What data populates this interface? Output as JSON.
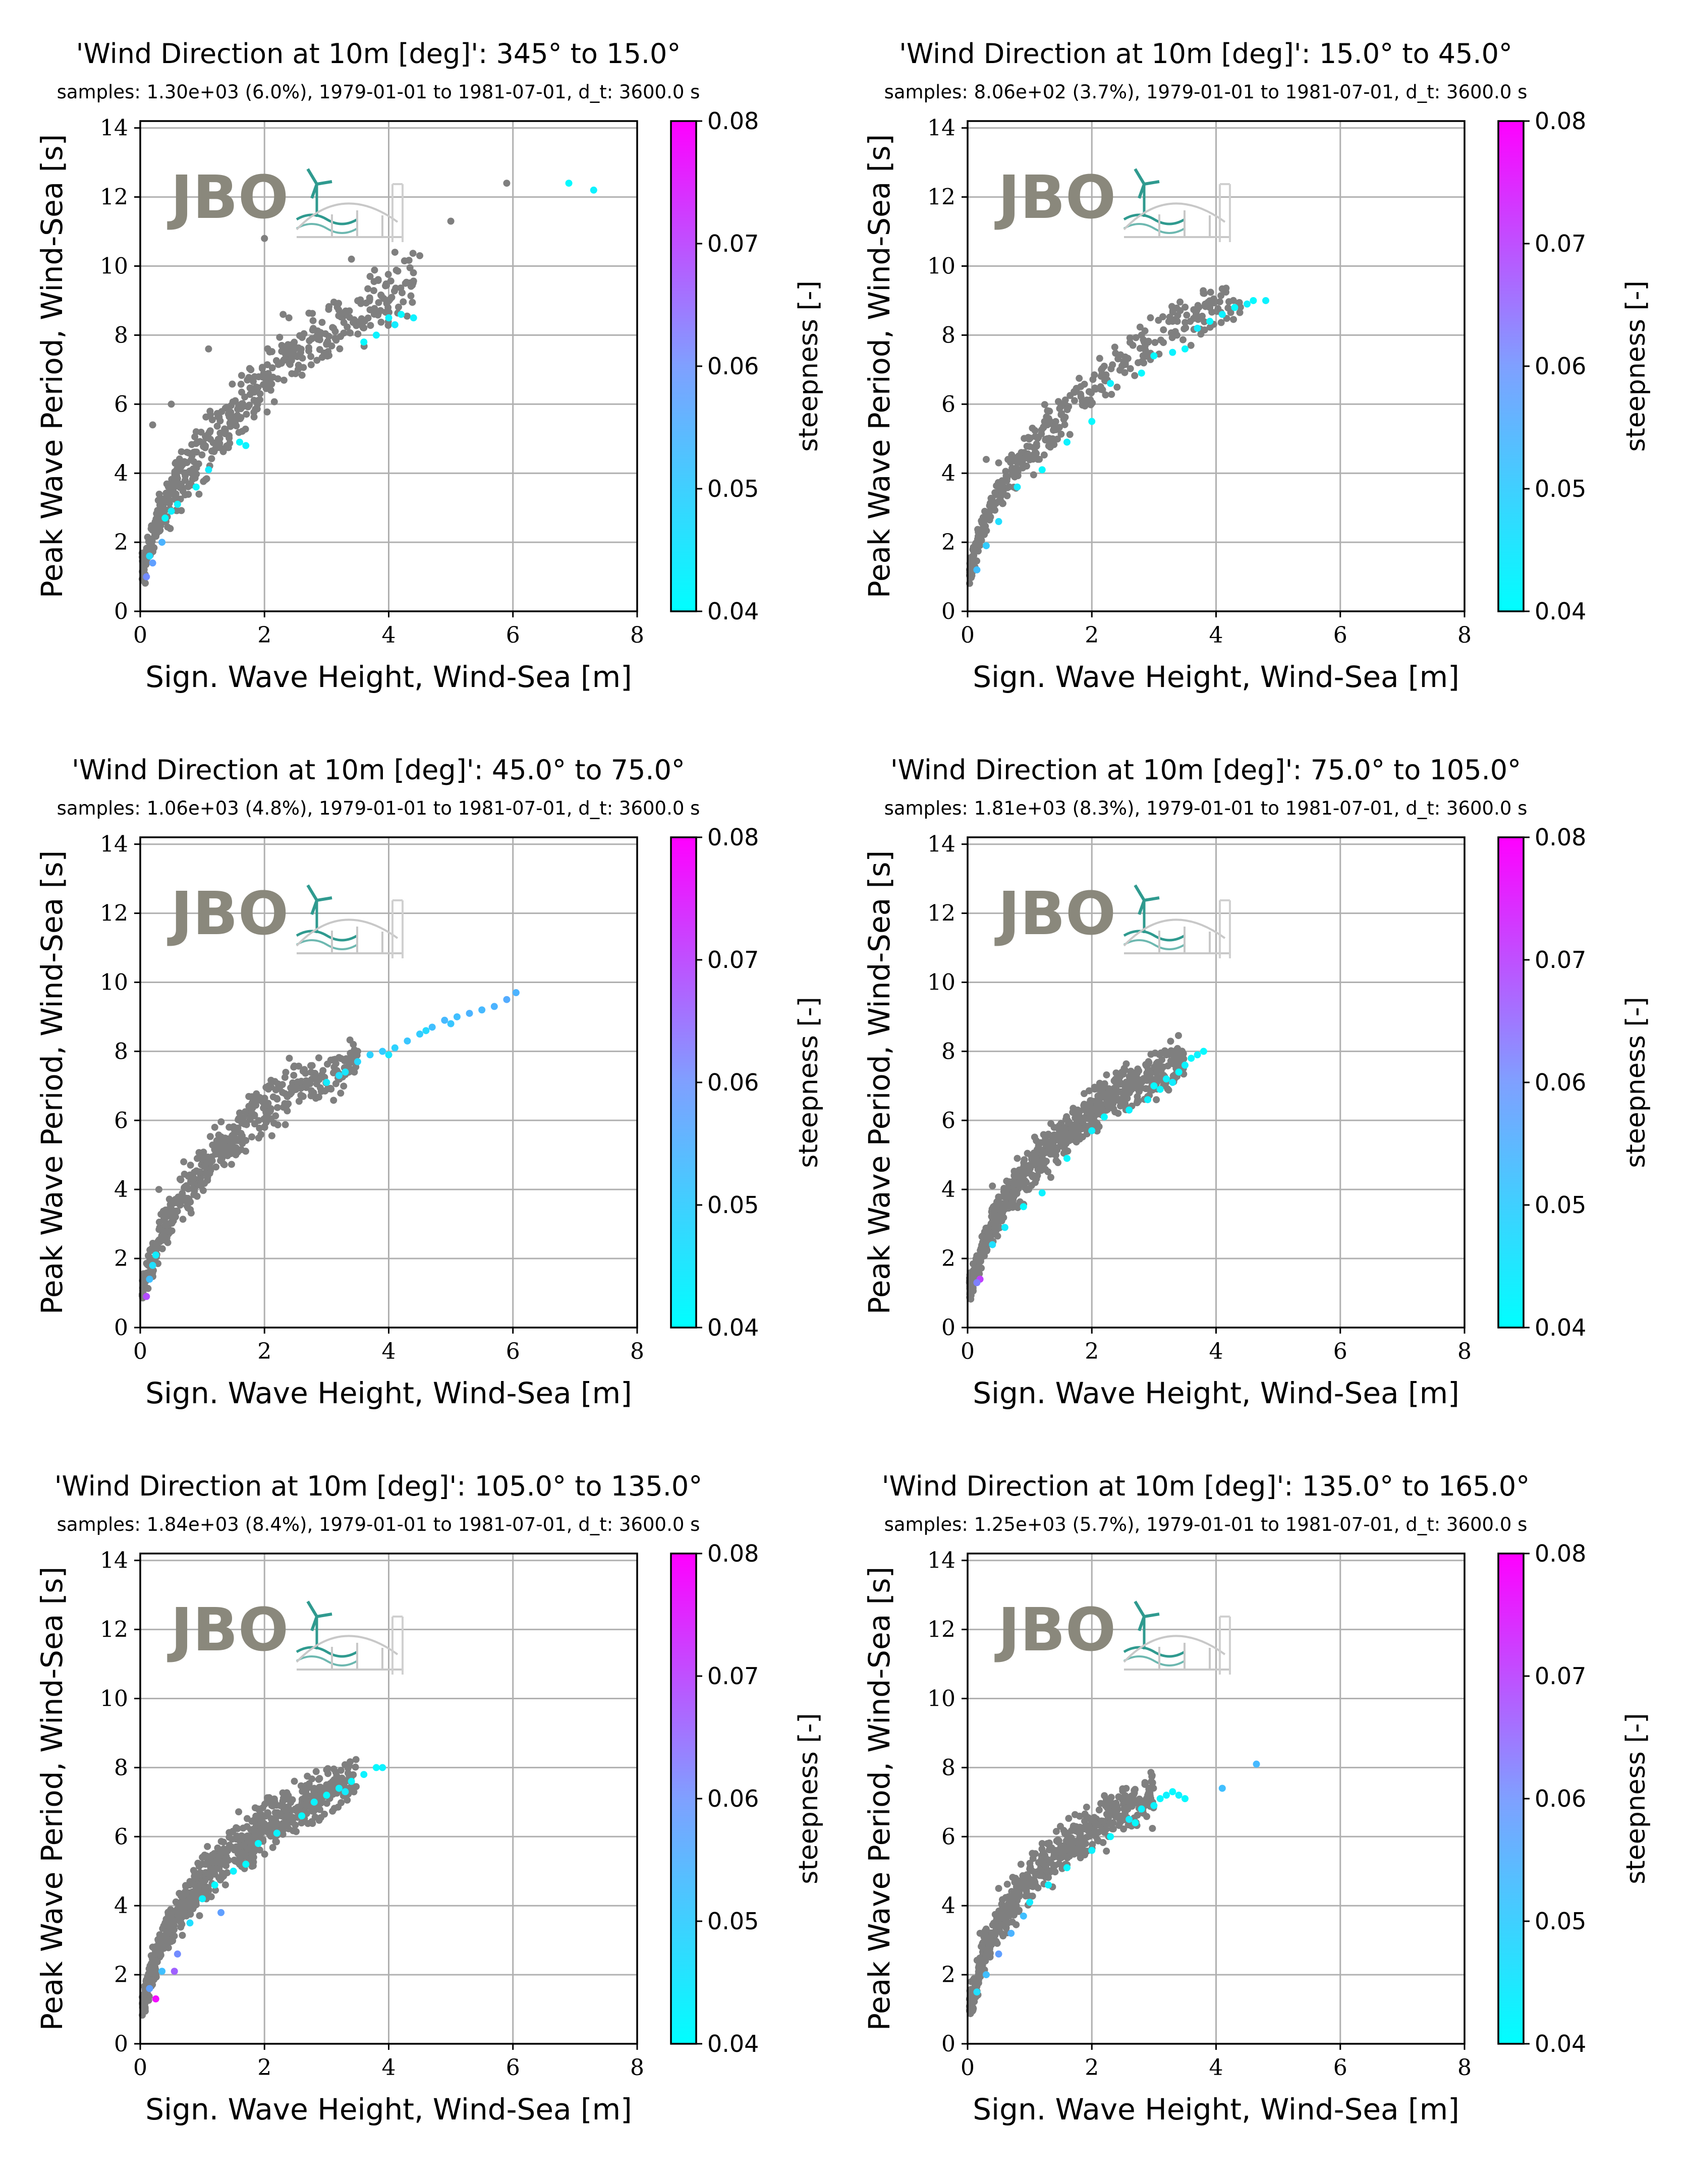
{
  "figure": {
    "colorbar": {
      "label": "steepness [-]",
      "ticks": [
        "0.04",
        "0.05",
        "0.06",
        "0.07",
        "0.08"
      ],
      "range": [
        0.04,
        0.08
      ],
      "colors": [
        "#00ffff",
        "#ff00ff"
      ]
    },
    "logo_text": "JBO",
    "point_color_default": "#7f7f7f"
  },
  "chart_data": [
    {
      "type": "scatter",
      "title": "'Wind Direction at 10m [deg]': 345° to 15.0°",
      "subtitle": "samples: 1.30e+03 (6.0%), 1979-01-01 to 1981-07-01, d_t: 3600.0 s",
      "xlabel": "Sign. Wave Height, Wind-Sea [m]",
      "ylabel": "Peak Wave Period, Wind-Sea [s]",
      "xlim": [
        0,
        8
      ],
      "ylim": [
        0,
        14.2
      ],
      "xticks": [
        "0",
        "2",
        "4",
        "6",
        "8"
      ],
      "yticks": [
        "0",
        "2",
        "4",
        "6",
        "8",
        "10",
        "12",
        "14"
      ],
      "grid": true,
      "gray_trend": [
        [
          0.05,
          1.2
        ],
        [
          0.3,
          2.8
        ],
        [
          0.6,
          3.7
        ],
        [
          1,
          4.6
        ],
        [
          1.5,
          5.7
        ],
        [
          2,
          6.7
        ],
        [
          2.5,
          7.6
        ],
        [
          3,
          8.1
        ],
        [
          3.5,
          8.6
        ],
        [
          4,
          9.1
        ],
        [
          4.4,
          9.6
        ]
      ],
      "gray_spread": 0.45,
      "gray_count": 520,
      "gray_outliers": [
        [
          0.2,
          5.4
        ],
        [
          0.5,
          6.0
        ],
        [
          1.1,
          7.6
        ],
        [
          2.0,
          10.8
        ],
        [
          2.3,
          8.6
        ],
        [
          3.4,
          10.2
        ],
        [
          4.1,
          10.4
        ],
        [
          5.0,
          11.3
        ],
        [
          5.9,
          12.4
        ],
        [
          4.5,
          10.3
        ],
        [
          3.7,
          9.7
        ],
        [
          0.9,
          5.2
        ]
      ],
      "colored_points": [
        [
          3.6,
          7.8,
          0.041
        ],
        [
          3.8,
          8.0,
          0.042
        ],
        [
          4.0,
          8.5,
          0.042
        ],
        [
          4.1,
          8.3,
          0.043
        ],
        [
          4.2,
          8.6,
          0.041
        ],
        [
          4.4,
          8.5,
          0.042
        ],
        [
          6.9,
          12.4,
          0.041
        ],
        [
          7.3,
          12.2,
          0.042
        ],
        [
          1.6,
          4.9,
          0.041
        ],
        [
          1.7,
          4.8,
          0.042
        ],
        [
          1.1,
          4.1,
          0.043
        ],
        [
          0.9,
          3.6,
          0.041
        ],
        [
          0.6,
          3.1,
          0.042
        ],
        [
          0.5,
          2.9,
          0.042
        ],
        [
          0.35,
          2.0,
          0.052
        ],
        [
          0.2,
          1.4,
          0.055
        ],
        [
          0.1,
          1.0,
          0.058
        ],
        [
          0.15,
          1.6,
          0.045
        ],
        [
          0.4,
          2.7,
          0.041
        ]
      ]
    },
    {
      "type": "scatter",
      "title": "'Wind Direction at 10m [deg]': 15.0° to 45.0°",
      "subtitle": "samples: 8.06e+02 (3.7%), 1979-01-01 to 1981-07-01, d_t: 3600.0 s",
      "xlabel": "Sign. Wave Height, Wind-Sea [m]",
      "ylabel": "Peak Wave Period, Wind-Sea [s]",
      "xlim": [
        0,
        8
      ],
      "ylim": [
        0,
        14.2
      ],
      "xticks": [
        "0",
        "2",
        "4",
        "6",
        "8"
      ],
      "yticks": [
        "0",
        "2",
        "4",
        "6",
        "8",
        "10",
        "12",
        "14"
      ],
      "grid": true,
      "gray_trend": [
        [
          0.05,
          1.2
        ],
        [
          0.3,
          2.7
        ],
        [
          0.6,
          3.7
        ],
        [
          1,
          4.6
        ],
        [
          1.5,
          5.6
        ],
        [
          2,
          6.5
        ],
        [
          2.5,
          7.3
        ],
        [
          3,
          7.9
        ],
        [
          3.5,
          8.4
        ],
        [
          4,
          8.8
        ],
        [
          4.4,
          9.0
        ]
      ],
      "gray_spread": 0.35,
      "gray_count": 360,
      "gray_outliers": [
        [
          0.3,
          4.4
        ],
        [
          0.5,
          4.3
        ],
        [
          1.5,
          6.0
        ],
        [
          2.8,
          8.0
        ],
        [
          3.3,
          8.4
        ],
        [
          3.9,
          8.8
        ],
        [
          2.2,
          7.1
        ]
      ],
      "colored_points": [
        [
          4.3,
          8.8,
          0.041
        ],
        [
          4.5,
          8.9,
          0.042
        ],
        [
          4.6,
          9.0,
          0.041
        ],
        [
          4.8,
          9.0,
          0.042
        ],
        [
          4.1,
          8.6,
          0.042
        ],
        [
          3.9,
          8.4,
          0.041
        ],
        [
          3.7,
          8.2,
          0.043
        ],
        [
          3.5,
          7.6,
          0.041
        ],
        [
          3.3,
          7.5,
          0.042
        ],
        [
          3.0,
          7.4,
          0.041
        ],
        [
          2.8,
          6.9,
          0.041
        ],
        [
          2.3,
          6.6,
          0.042
        ],
        [
          2.0,
          5.5,
          0.041
        ],
        [
          1.6,
          4.9,
          0.042
        ],
        [
          1.2,
          4.1,
          0.041
        ],
        [
          0.8,
          3.6,
          0.043
        ],
        [
          0.5,
          2.6,
          0.045
        ],
        [
          0.3,
          1.9,
          0.048
        ],
        [
          0.15,
          1.2,
          0.05
        ]
      ]
    },
    {
      "type": "scatter",
      "title": "'Wind Direction at 10m [deg]': 45.0° to 75.0°",
      "subtitle": "samples: 1.06e+03 (4.8%), 1979-01-01 to 1981-07-01, d_t: 3600.0 s",
      "xlabel": "Sign. Wave Height, Wind-Sea [m]",
      "ylabel": "Peak Wave Period, Wind-Sea [s]",
      "xlim": [
        0,
        8
      ],
      "ylim": [
        0,
        14.2
      ],
      "xticks": [
        "0",
        "2",
        "4",
        "6",
        "8"
      ],
      "yticks": [
        "0",
        "2",
        "4",
        "6",
        "8",
        "10",
        "12",
        "14"
      ],
      "grid": true,
      "gray_trend": [
        [
          0.05,
          1.2
        ],
        [
          0.3,
          2.6
        ],
        [
          0.6,
          3.5
        ],
        [
          1,
          4.6
        ],
        [
          1.5,
          5.5
        ],
        [
          2,
          6.3
        ],
        [
          2.5,
          6.9
        ],
        [
          3,
          7.3
        ],
        [
          3.5,
          7.8
        ]
      ],
      "gray_spread": 0.35,
      "gray_count": 480,
      "gray_outliers": [
        [
          0.3,
          4.0
        ],
        [
          0.7,
          4.8
        ],
        [
          1.2,
          5.8
        ],
        [
          2.4,
          7.8
        ],
        [
          3.5,
          8.0
        ],
        [
          1.8,
          6.5
        ]
      ],
      "colored_points": [
        [
          3.2,
          7.3,
          0.045
        ],
        [
          3.5,
          7.7,
          0.046
        ],
        [
          3.7,
          7.9,
          0.047
        ],
        [
          3.9,
          8.0,
          0.048
        ],
        [
          4.1,
          8.1,
          0.047
        ],
        [
          4.3,
          8.3,
          0.049
        ],
        [
          4.5,
          8.5,
          0.048
        ],
        [
          4.7,
          8.7,
          0.05
        ],
        [
          4.9,
          8.9,
          0.051
        ],
        [
          5.1,
          9.0,
          0.05
        ],
        [
          5.3,
          9.1,
          0.052
        ],
        [
          5.5,
          9.2,
          0.051
        ],
        [
          5.7,
          9.3,
          0.052
        ],
        [
          5.9,
          9.5,
          0.053
        ],
        [
          6.05,
          9.7,
          0.052
        ],
        [
          4.0,
          7.9,
          0.044
        ],
        [
          3.0,
          7.1,
          0.043
        ],
        [
          3.3,
          7.4,
          0.044
        ],
        [
          0.2,
          1.8,
          0.045
        ],
        [
          0.15,
          1.4,
          0.05
        ],
        [
          0.1,
          0.9,
          0.068
        ],
        [
          0.25,
          2.1,
          0.043
        ],
        [
          4.6,
          8.6,
          0.046
        ],
        [
          5.0,
          8.8,
          0.049
        ]
      ]
    },
    {
      "type": "scatter",
      "title": "'Wind Direction at 10m [deg]': 75.0° to 105.0°",
      "subtitle": "samples: 1.81e+03 (8.3%), 1979-01-01 to 1981-07-01, d_t: 3600.0 s",
      "xlabel": "Sign. Wave Height, Wind-Sea [m]",
      "ylabel": "Peak Wave Period, Wind-Sea [s]",
      "xlim": [
        0,
        8
      ],
      "ylim": [
        0,
        14.2
      ],
      "xticks": [
        "0",
        "2",
        "4",
        "6",
        "8"
      ],
      "yticks": [
        "0",
        "2",
        "4",
        "6",
        "8",
        "10",
        "12",
        "14"
      ],
      "grid": true,
      "gray_trend": [
        [
          0.05,
          1.2
        ],
        [
          0.3,
          2.6
        ],
        [
          0.6,
          3.6
        ],
        [
          1,
          4.6
        ],
        [
          1.5,
          5.5
        ],
        [
          2,
          6.3
        ],
        [
          2.5,
          6.9
        ],
        [
          3,
          7.3
        ],
        [
          3.5,
          7.7
        ]
      ],
      "gray_spread": 0.3,
      "gray_count": 800,
      "gray_outliers": [
        [
          0.4,
          4.1
        ],
        [
          0.8,
          4.9
        ],
        [
          1.3,
          5.6
        ],
        [
          2.2,
          7.0
        ],
        [
          3.2,
          7.9
        ]
      ],
      "colored_points": [
        [
          3.0,
          7.0,
          0.041
        ],
        [
          3.2,
          7.2,
          0.042
        ],
        [
          3.4,
          7.4,
          0.041
        ],
        [
          3.5,
          7.6,
          0.042
        ],
        [
          3.6,
          7.8,
          0.041
        ],
        [
          3.7,
          7.9,
          0.042
        ],
        [
          3.8,
          8.0,
          0.041
        ],
        [
          3.3,
          7.1,
          0.043
        ],
        [
          3.1,
          6.9,
          0.041
        ],
        [
          2.6,
          6.3,
          0.042
        ],
        [
          2.2,
          6.1,
          0.041
        ],
        [
          2.0,
          5.7,
          0.042
        ],
        [
          1.6,
          4.9,
          0.041
        ],
        [
          1.2,
          3.9,
          0.042
        ],
        [
          0.9,
          3.5,
          0.041
        ],
        [
          0.6,
          2.9,
          0.043
        ],
        [
          0.4,
          2.4,
          0.045
        ],
        [
          0.2,
          1.4,
          0.07
        ],
        [
          0.15,
          1.3,
          0.06
        ],
        [
          2.9,
          6.6,
          0.042
        ]
      ]
    },
    {
      "type": "scatter",
      "title": "'Wind Direction at 10m [deg]': 105.0° to 135.0°",
      "subtitle": "samples: 1.84e+03 (8.4%), 1979-01-01 to 1981-07-01, d_t: 3600.0 s",
      "xlabel": "Sign. Wave Height, Wind-Sea [m]",
      "ylabel": "Peak Wave Period, Wind-Sea [s]",
      "xlim": [
        0,
        8
      ],
      "ylim": [
        0,
        14.2
      ],
      "xticks": [
        "0",
        "2",
        "4",
        "6",
        "8"
      ],
      "yticks": [
        "0",
        "2",
        "4",
        "6",
        "8",
        "10",
        "12",
        "14"
      ],
      "grid": true,
      "gray_trend": [
        [
          0.05,
          1.2
        ],
        [
          0.3,
          2.8
        ],
        [
          0.6,
          3.7
        ],
        [
          1,
          4.7
        ],
        [
          1.5,
          5.6
        ],
        [
          2,
          6.3
        ],
        [
          2.5,
          6.8
        ],
        [
          3,
          7.3
        ],
        [
          3.5,
          7.7
        ]
      ],
      "gray_spread": 0.35,
      "gray_count": 800,
      "gray_outliers": [
        [
          0.2,
          2.8
        ],
        [
          0.4,
          3.5
        ],
        [
          1.0,
          5.4
        ],
        [
          1.9,
          6.8
        ],
        [
          2.8,
          7.4
        ]
      ],
      "colored_points": [
        [
          2.8,
          7.0,
          0.042
        ],
        [
          3.0,
          7.2,
          0.041
        ],
        [
          3.2,
          7.4,
          0.042
        ],
        [
          3.4,
          7.6,
          0.041
        ],
        [
          3.6,
          7.8,
          0.042
        ],
        [
          3.8,
          8.0,
          0.041
        ],
        [
          3.9,
          8.0,
          0.042
        ],
        [
          2.6,
          6.6,
          0.041
        ],
        [
          2.2,
          6.1,
          0.042
        ],
        [
          1.9,
          5.8,
          0.041
        ],
        [
          1.5,
          5.0,
          0.042
        ],
        [
          1.2,
          4.6,
          0.041
        ],
        [
          1.0,
          4.2,
          0.042
        ],
        [
          1.3,
          3.8,
          0.055
        ],
        [
          0.8,
          3.5,
          0.045
        ],
        [
          0.6,
          2.6,
          0.058
        ],
        [
          0.55,
          2.1,
          0.065
        ],
        [
          0.35,
          2.1,
          0.05
        ],
        [
          0.25,
          1.3,
          0.078
        ],
        [
          0.15,
          1.6,
          0.055
        ],
        [
          3.3,
          7.3,
          0.043
        ],
        [
          1.7,
          5.2,
          0.041
        ]
      ]
    },
    {
      "type": "scatter",
      "title": "'Wind Direction at 10m [deg]': 135.0° to 165.0°",
      "subtitle": "samples: 1.25e+03 (5.7%), 1979-01-01 to 1981-07-01, d_t: 3600.0 s",
      "xlabel": "Sign. Wave Height, Wind-Sea [m]",
      "ylabel": "Peak Wave Period, Wind-Sea [s]",
      "xlim": [
        0,
        8
      ],
      "ylim": [
        0,
        14.2
      ],
      "xticks": [
        "0",
        "2",
        "4",
        "6",
        "8"
      ],
      "yticks": [
        "0",
        "2",
        "4",
        "6",
        "8",
        "10",
        "12",
        "14"
      ],
      "grid": true,
      "gray_trend": [
        [
          0.05,
          1.2
        ],
        [
          0.3,
          2.8
        ],
        [
          0.6,
          3.8
        ],
        [
          1,
          4.8
        ],
        [
          1.5,
          5.6
        ],
        [
          2,
          6.3
        ],
        [
          2.5,
          6.8
        ],
        [
          3,
          7.1
        ]
      ],
      "gray_spread": 0.35,
      "gray_count": 560,
      "gray_outliers": [
        [
          0.2,
          3.2
        ],
        [
          0.5,
          4.5
        ],
        [
          1.2,
          5.8
        ],
        [
          2.6,
          7.1
        ],
        [
          2.9,
          7.2
        ]
      ],
      "colored_points": [
        [
          3.0,
          6.9,
          0.042
        ],
        [
          3.1,
          7.1,
          0.041
        ],
        [
          3.2,
          7.2,
          0.042
        ],
        [
          3.3,
          7.3,
          0.041
        ],
        [
          3.4,
          7.2,
          0.042
        ],
        [
          3.5,
          7.1,
          0.041
        ],
        [
          2.8,
          6.8,
          0.042
        ],
        [
          2.6,
          6.5,
          0.043
        ],
        [
          2.3,
          6.0,
          0.041
        ],
        [
          2.0,
          5.6,
          0.042
        ],
        [
          1.6,
          5.1,
          0.041
        ],
        [
          1.3,
          4.6,
          0.042
        ],
        [
          1.0,
          4.1,
          0.043
        ],
        [
          0.9,
          3.7,
          0.05
        ],
        [
          0.7,
          3.2,
          0.052
        ],
        [
          0.5,
          2.6,
          0.055
        ],
        [
          0.3,
          2.0,
          0.05
        ],
        [
          0.15,
          1.5,
          0.045
        ],
        [
          4.1,
          7.4,
          0.05
        ],
        [
          4.65,
          8.1,
          0.051
        ],
        [
          2.7,
          6.4,
          0.041
        ]
      ]
    }
  ]
}
